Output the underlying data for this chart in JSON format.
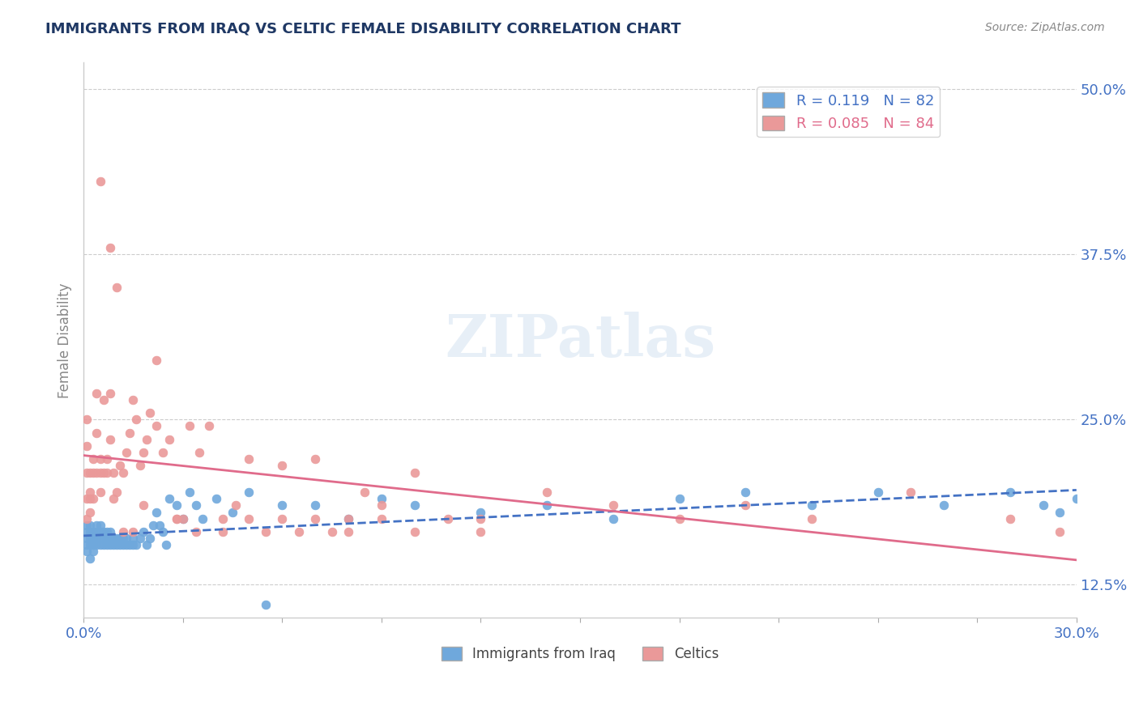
{
  "title": "IMMIGRANTS FROM IRAQ VS CELTIC FEMALE DISABILITY CORRELATION CHART",
  "source_text": "Source: ZipAtlas.com",
  "xlabel": "",
  "ylabel": "Female Disability",
  "xlim": [
    0.0,
    0.3
  ],
  "ylim": [
    0.1,
    0.52
  ],
  "yticks": [
    0.125,
    0.25,
    0.375,
    0.5
  ],
  "ytick_labels": [
    "12.5%",
    "25.0%",
    "37.5%",
    "50.0%"
  ],
  "xticks": [
    0.0,
    0.03,
    0.06,
    0.09,
    0.12,
    0.15,
    0.18,
    0.21,
    0.24,
    0.27,
    0.3
  ],
  "xtick_labels": [
    "0.0%",
    "",
    "",
    "",
    "",
    "",
    "",
    "",
    "",
    "",
    "30.0%"
  ],
  "iraq_color": "#6fa8dc",
  "celtics_color": "#ea9999",
  "iraq_line_color": "#4472c4",
  "celtics_line_color": "#e06b8b",
  "iraq_R": 0.119,
  "iraq_N": 82,
  "celtics_R": 0.085,
  "celtics_N": 84,
  "watermark": "ZIPatlas",
  "background_color": "#ffffff",
  "grid_color": "#cccccc",
  "title_color": "#1f3864",
  "axis_label_color": "#4472c4",
  "tick_color": "#4472c4",
  "iraq_scatter_x": [
    0.001,
    0.001,
    0.001,
    0.001,
    0.001,
    0.002,
    0.002,
    0.002,
    0.002,
    0.002,
    0.003,
    0.003,
    0.003,
    0.003,
    0.003,
    0.004,
    0.004,
    0.004,
    0.004,
    0.005,
    0.005,
    0.005,
    0.005,
    0.006,
    0.006,
    0.006,
    0.007,
    0.007,
    0.007,
    0.008,
    0.008,
    0.008,
    0.009,
    0.009,
    0.01,
    0.01,
    0.011,
    0.011,
    0.012,
    0.012,
    0.013,
    0.013,
    0.014,
    0.015,
    0.015,
    0.016,
    0.017,
    0.018,
    0.019,
    0.02,
    0.021,
    0.022,
    0.023,
    0.024,
    0.025,
    0.026,
    0.028,
    0.03,
    0.032,
    0.034,
    0.036,
    0.04,
    0.045,
    0.05,
    0.055,
    0.06,
    0.07,
    0.08,
    0.09,
    0.1,
    0.12,
    0.14,
    0.16,
    0.18,
    0.2,
    0.22,
    0.24,
    0.26,
    0.28,
    0.295,
    0.29,
    0.3
  ],
  "iraq_scatter_y": [
    0.16,
    0.165,
    0.155,
    0.17,
    0.15,
    0.16,
    0.155,
    0.165,
    0.17,
    0.145,
    0.155,
    0.16,
    0.165,
    0.15,
    0.155,
    0.16,
    0.155,
    0.165,
    0.17,
    0.155,
    0.16,
    0.165,
    0.17,
    0.155,
    0.16,
    0.165,
    0.155,
    0.16,
    0.165,
    0.155,
    0.16,
    0.165,
    0.155,
    0.16,
    0.155,
    0.16,
    0.155,
    0.16,
    0.155,
    0.16,
    0.155,
    0.16,
    0.155,
    0.16,
    0.155,
    0.155,
    0.16,
    0.165,
    0.155,
    0.16,
    0.17,
    0.18,
    0.17,
    0.165,
    0.155,
    0.19,
    0.185,
    0.175,
    0.195,
    0.185,
    0.175,
    0.19,
    0.18,
    0.195,
    0.11,
    0.185,
    0.185,
    0.175,
    0.19,
    0.185,
    0.18,
    0.185,
    0.175,
    0.19,
    0.195,
    0.185,
    0.195,
    0.185,
    0.195,
    0.18,
    0.185,
    0.19
  ],
  "celtics_scatter_x": [
    0.001,
    0.001,
    0.001,
    0.001,
    0.001,
    0.002,
    0.002,
    0.002,
    0.002,
    0.003,
    0.003,
    0.003,
    0.004,
    0.004,
    0.004,
    0.005,
    0.005,
    0.005,
    0.006,
    0.006,
    0.007,
    0.007,
    0.008,
    0.008,
    0.009,
    0.009,
    0.01,
    0.011,
    0.012,
    0.013,
    0.014,
    0.015,
    0.016,
    0.017,
    0.018,
    0.019,
    0.02,
    0.022,
    0.024,
    0.026,
    0.028,
    0.03,
    0.032,
    0.035,
    0.038,
    0.042,
    0.046,
    0.05,
    0.06,
    0.07,
    0.08,
    0.09,
    0.1,
    0.12,
    0.14,
    0.16,
    0.18,
    0.2,
    0.22,
    0.25,
    0.28,
    0.295,
    0.005,
    0.008,
    0.01,
    0.012,
    0.015,
    0.018,
    0.022,
    0.028,
    0.034,
    0.042,
    0.05,
    0.055,
    0.06,
    0.065,
    0.07,
    0.075,
    0.08,
    0.085,
    0.09,
    0.1,
    0.11,
    0.12
  ],
  "celtics_scatter_y": [
    0.19,
    0.21,
    0.23,
    0.25,
    0.175,
    0.19,
    0.21,
    0.18,
    0.195,
    0.22,
    0.19,
    0.21,
    0.21,
    0.24,
    0.27,
    0.195,
    0.21,
    0.22,
    0.265,
    0.21,
    0.22,
    0.21,
    0.27,
    0.235,
    0.19,
    0.21,
    0.195,
    0.215,
    0.21,
    0.225,
    0.24,
    0.265,
    0.25,
    0.215,
    0.225,
    0.235,
    0.255,
    0.245,
    0.225,
    0.235,
    0.175,
    0.175,
    0.245,
    0.225,
    0.245,
    0.175,
    0.185,
    0.22,
    0.215,
    0.22,
    0.175,
    0.185,
    0.21,
    0.175,
    0.195,
    0.185,
    0.175,
    0.185,
    0.175,
    0.195,
    0.175,
    0.165,
    0.43,
    0.38,
    0.35,
    0.165,
    0.165,
    0.185,
    0.295,
    0.175,
    0.165,
    0.165,
    0.175,
    0.165,
    0.175,
    0.165,
    0.175,
    0.165,
    0.165,
    0.195,
    0.175,
    0.165,
    0.175,
    0.165
  ]
}
